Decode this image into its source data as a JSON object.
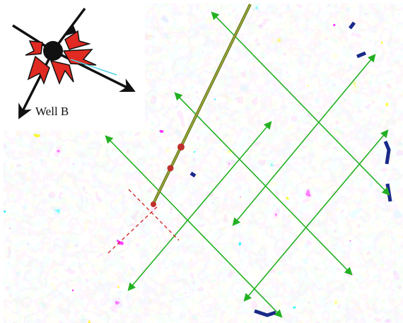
{
  "label": "Well B"
}
